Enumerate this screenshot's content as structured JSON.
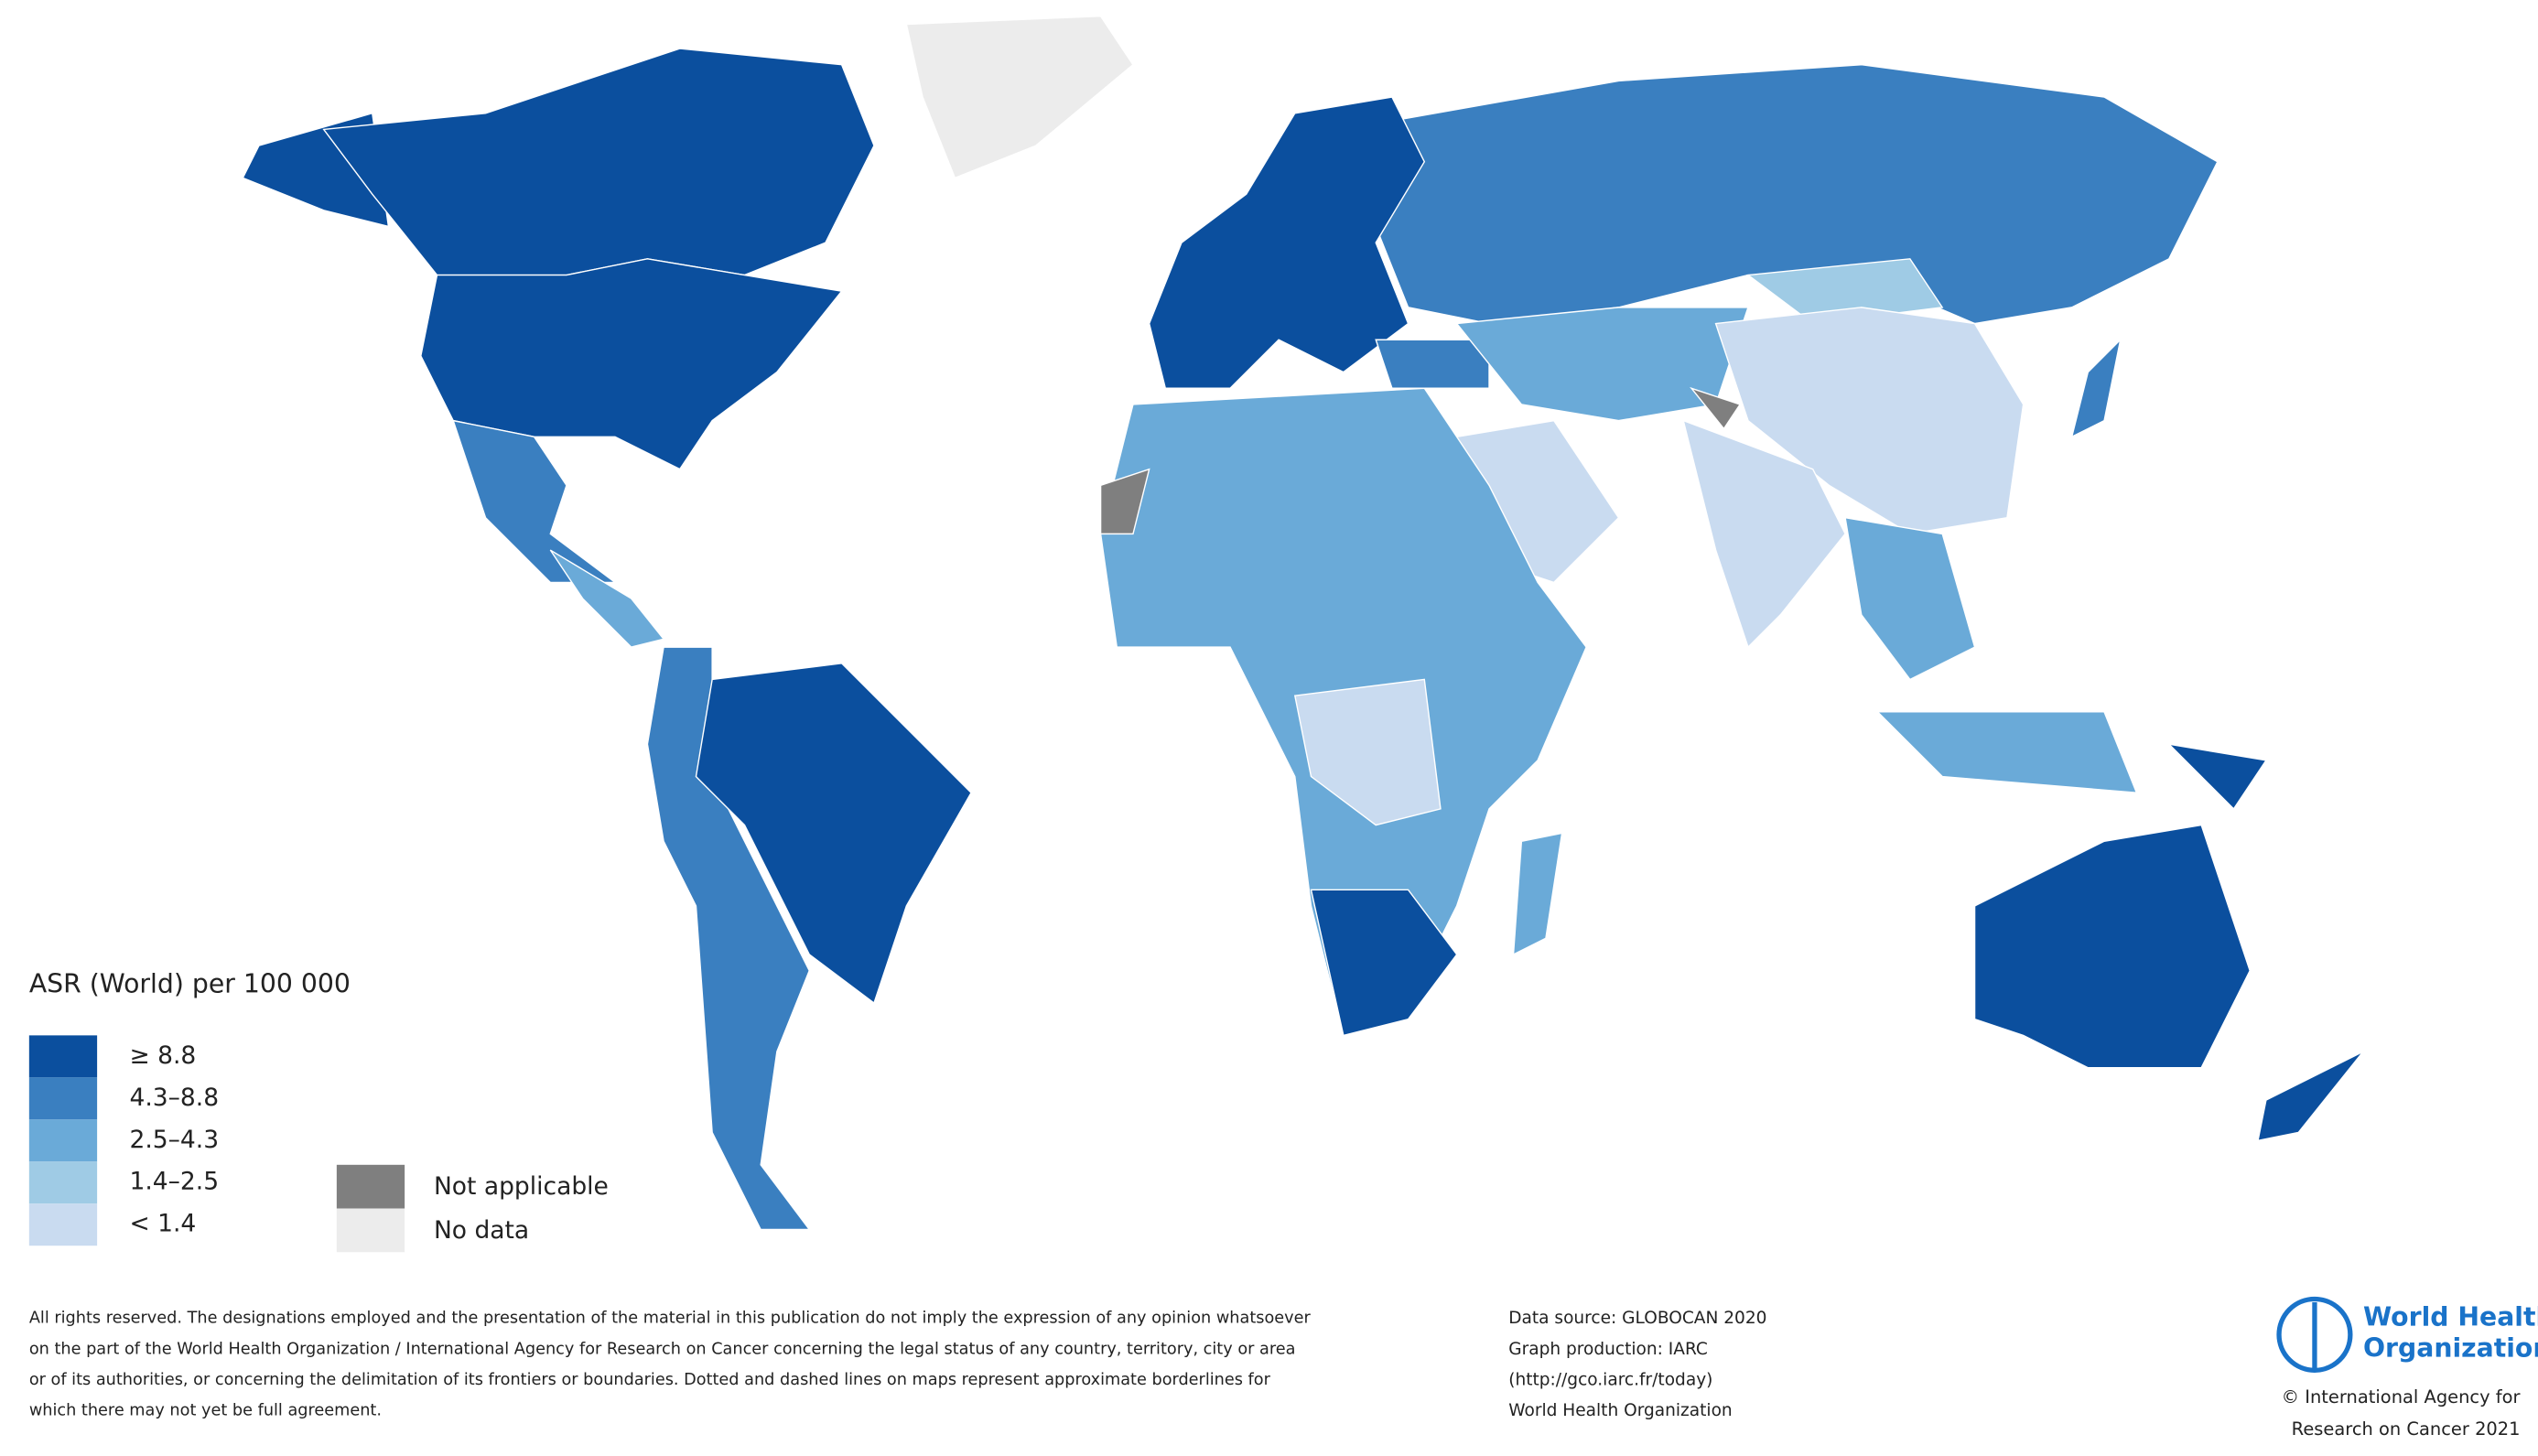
{
  "legend": {
    "title": "ASR (World) per 100 000",
    "items": [
      {
        "label": "≥ 8.8",
        "color": "#0b4f9e"
      },
      {
        "label": "4.3–8.8",
        "color": "#3a7fc0"
      },
      {
        "label": "2.5–4.3",
        "color": "#6aaad8"
      },
      {
        "label": "1.4–2.5",
        "color": "#9fcbe5"
      },
      {
        "label": "< 1.4",
        "color": "#c9dbf0"
      }
    ],
    "extra": [
      {
        "label": "Not applicable",
        "color": "#7f7f7f"
      },
      {
        "label": "No data",
        "color": "#ececec"
      }
    ]
  },
  "disclaimer": [
    "All rights reserved. The designations employed and the presentation of the material in this publication do not imply the expression of any opinion whatsoever",
    "on the part of the World Health Organization / International Agency for Research on Cancer concerning the legal status of any country, territory, city or area",
    "or of its authorities, or concerning the delimitation of its frontiers or boundaries. Dotted and dashed lines on maps represent approximate borderlines for",
    "which there may not yet be full agreement."
  ],
  "source": [
    "Data source: GLOBOCAN 2020",
    "Graph production: IARC",
    "(http://gco.iarc.fr/today)",
    "World Health Organization"
  ],
  "logo": [
    "World Health",
    "Organization"
  ],
  "copyright": [
    "© International Agency for",
    "Research on Cancer 2021"
  ]
}
